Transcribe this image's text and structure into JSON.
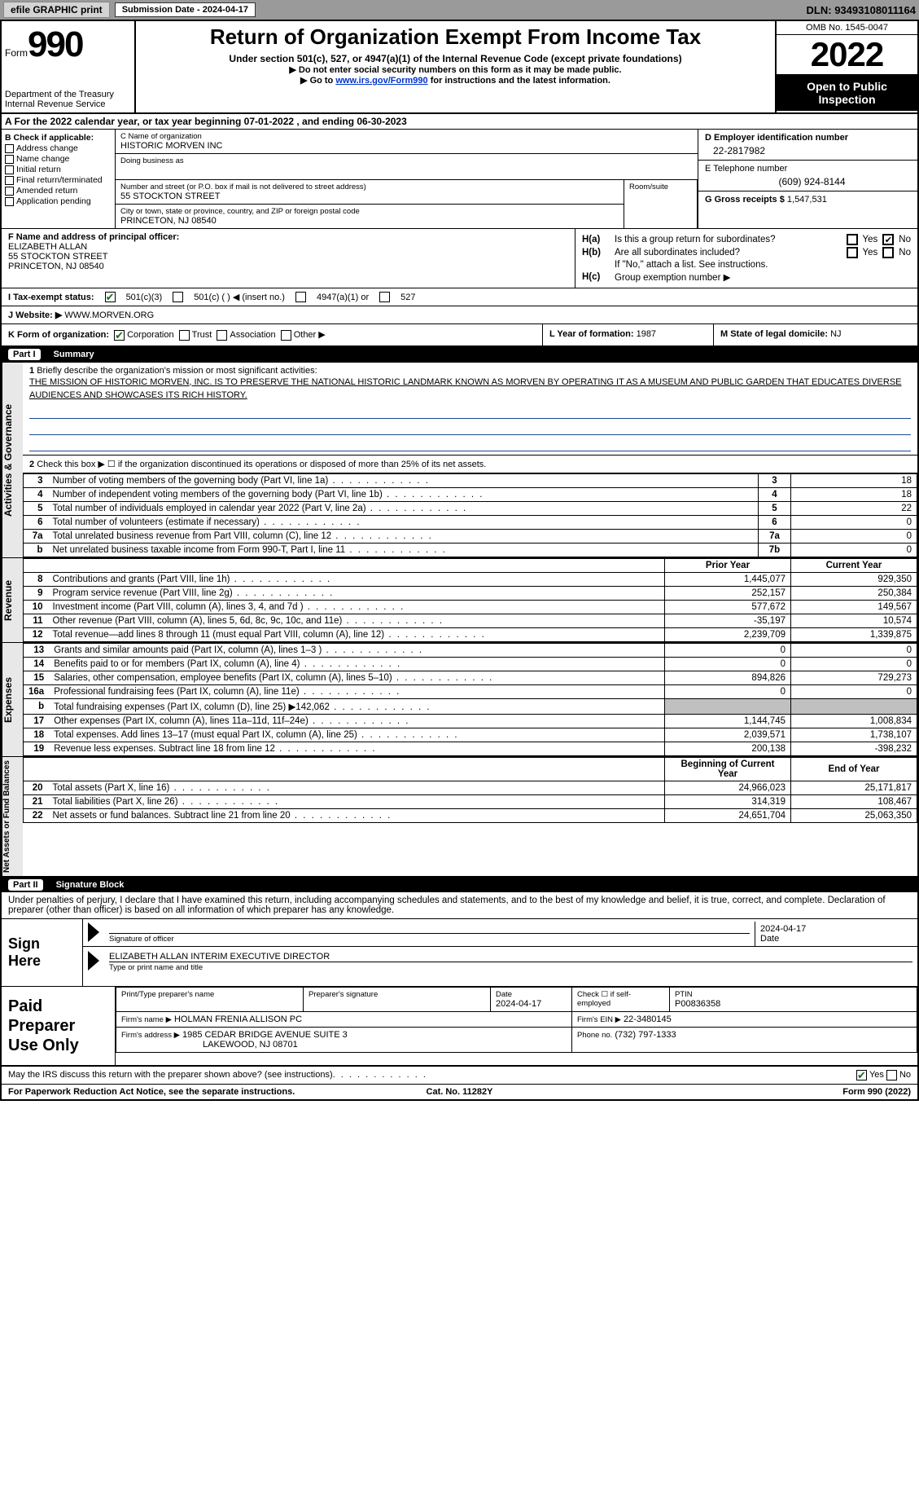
{
  "toolbar": {
    "efile_label": "efile GRAPHIC print",
    "submission_label": "Submission Date - 2024-04-17",
    "dln_label": "DLN: 93493108011164"
  },
  "header": {
    "form_label": "Form",
    "form_number": "990",
    "dept": "Department of the Treasury Internal Revenue Service",
    "title": "Return of Organization Exempt From Income Tax",
    "subtitle": "Under section 501(c), 527, or 4947(a)(1) of the Internal Revenue Code (except private foundations)",
    "note1": "▶ Do not enter social security numbers on this form as it may be made public.",
    "note2_pre": "▶ Go to ",
    "note2_link": "www.irs.gov/Form990",
    "note2_post": " for instructions and the latest information.",
    "omb": "OMB No. 1545-0047",
    "year": "2022",
    "open_public": "Open to Public Inspection"
  },
  "period": {
    "text": "A For the 2022 calendar year, or tax year beginning 07-01-2022   , and ending 06-30-2023"
  },
  "checkB": {
    "label": "B Check if applicable:",
    "items": [
      "Address change",
      "Name change",
      "Initial return",
      "Final return/terminated",
      "Amended return",
      "Application pending"
    ]
  },
  "orgC": {
    "name_label": "C Name of organization",
    "name": "HISTORIC MORVEN INC",
    "dba_label": "Doing business as",
    "addr_label": "Number and street (or P.O. box if mail is not delivered to street address)",
    "addr": "55 STOCKTON STREET",
    "room_label": "Room/suite",
    "city_label": "City or town, state or province, country, and ZIP or foreign postal code",
    "city": "PRINCETON, NJ  08540"
  },
  "ein": {
    "label": "D Employer identification number",
    "value": "22-2817982"
  },
  "tel": {
    "label": "E Telephone number",
    "value": "(609) 924-8144"
  },
  "gross": {
    "label": "G Gross receipts $",
    "value": "1,547,531"
  },
  "officerF": {
    "label": "F Name and address of principal officer:",
    "name": "ELIZABETH ALLAN",
    "addr1": "55 STOCKTON STREET",
    "addr2": "PRINCETON, NJ  08540"
  },
  "sectionH": {
    "ha_label": "H(a)",
    "ha_q": "Is this a group return for subordinates?",
    "hb_label": "H(b)",
    "hb_q": "Are all subordinates included?",
    "hb_note": "If \"No,\" attach a list. See instructions.",
    "hc_label": "H(c)",
    "hc_q": "Group exemption number ▶",
    "yes": "Yes",
    "no": "No"
  },
  "sectionI": {
    "label": "I  Tax-exempt status:",
    "opt1": "501(c)(3)",
    "opt2": "501(c) (  ) ◀ (insert no.)",
    "opt3": "4947(a)(1) or",
    "opt4": "527"
  },
  "sectionJ": {
    "label": "J  Website: ▶",
    "value": "WWW.MORVEN.ORG"
  },
  "sectionK": {
    "k1_label": "K Form of organization:",
    "opts": [
      "Corporation",
      "Trust",
      "Association",
      "Other ▶"
    ],
    "k2_label": "L Year of formation:",
    "k2_val": "1987",
    "k3_label": "M State of legal domicile:",
    "k3_val": "NJ"
  },
  "part1": {
    "header_pt": "Part I",
    "header_title": "Summary",
    "side_activities": "Activities & Governance",
    "side_revenue": "Revenue",
    "side_expenses": "Expenses",
    "side_netassets": "Net Assets or Fund Balances",
    "line1_label": "Briefly describe the organization's mission or most significant activities:",
    "mission": "THE MISSION OF HISTORIC MORVEN, INC. IS TO PRESERVE THE NATIONAL HISTORIC LANDMARK KNOWN AS MORVEN BY OPERATING IT AS A MUSEUM AND PUBLIC GARDEN THAT EDUCATES DIVERSE AUDIENCES AND SHOWCASES ITS RICH HISTORY.",
    "line2": "Check this box ▶ ☐ if the organization discontinued its operations or disposed of more than 25% of its net assets.",
    "rows_gov": [
      {
        "n": "3",
        "desc": "Number of voting members of the governing body (Part VI, line 1a)",
        "box": "3",
        "val": "18"
      },
      {
        "n": "4",
        "desc": "Number of independent voting members of the governing body (Part VI, line 1b)",
        "box": "4",
        "val": "18"
      },
      {
        "n": "5",
        "desc": "Total number of individuals employed in calendar year 2022 (Part V, line 2a)",
        "box": "5",
        "val": "22"
      },
      {
        "n": "6",
        "desc": "Total number of volunteers (estimate if necessary)",
        "box": "6",
        "val": "0"
      },
      {
        "n": "7a",
        "desc": "Total unrelated business revenue from Part VIII, column (C), line 12",
        "box": "7a",
        "val": "0"
      },
      {
        "n": "b",
        "desc": "Net unrelated business taxable income from Form 990-T, Part I, line 11",
        "box": "7b",
        "val": "0"
      }
    ],
    "col_prior": "Prior Year",
    "col_current": "Current Year",
    "rows_rev": [
      {
        "n": "8",
        "desc": "Contributions and grants (Part VIII, line 1h)",
        "py": "1,445,077",
        "cy": "929,350"
      },
      {
        "n": "9",
        "desc": "Program service revenue (Part VIII, line 2g)",
        "py": "252,157",
        "cy": "250,384"
      },
      {
        "n": "10",
        "desc": "Investment income (Part VIII, column (A), lines 3, 4, and 7d )",
        "py": "577,672",
        "cy": "149,567"
      },
      {
        "n": "11",
        "desc": "Other revenue (Part VIII, column (A), lines 5, 6d, 8c, 9c, 10c, and 11e)",
        "py": "-35,197",
        "cy": "10,574"
      },
      {
        "n": "12",
        "desc": "Total revenue—add lines 8 through 11 (must equal Part VIII, column (A), line 12)",
        "py": "2,239,709",
        "cy": "1,339,875"
      }
    ],
    "rows_exp": [
      {
        "n": "13",
        "desc": "Grants and similar amounts paid (Part IX, column (A), lines 1–3 )",
        "py": "0",
        "cy": "0"
      },
      {
        "n": "14",
        "desc": "Benefits paid to or for members (Part IX, column (A), line 4)",
        "py": "0",
        "cy": "0"
      },
      {
        "n": "15",
        "desc": "Salaries, other compensation, employee benefits (Part IX, column (A), lines 5–10)",
        "py": "894,826",
        "cy": "729,273"
      },
      {
        "n": "16a",
        "desc": "Professional fundraising fees (Part IX, column (A), line 11e)",
        "py": "0",
        "cy": "0"
      },
      {
        "n": "b",
        "desc": "Total fundraising expenses (Part IX, column (D), line 25) ▶142,062",
        "py": "",
        "cy": "",
        "gray": true
      },
      {
        "n": "17",
        "desc": "Other expenses (Part IX, column (A), lines 11a–11d, 11f–24e)",
        "py": "1,144,745",
        "cy": "1,008,834"
      },
      {
        "n": "18",
        "desc": "Total expenses. Add lines 13–17 (must equal Part IX, column (A), line 25)",
        "py": "2,039,571",
        "cy": "1,738,107"
      },
      {
        "n": "19",
        "desc": "Revenue less expenses. Subtract line 18 from line 12",
        "py": "200,138",
        "cy": "-398,232"
      }
    ],
    "col_begin": "Beginning of Current Year",
    "col_end": "End of Year",
    "rows_net": [
      {
        "n": "20",
        "desc": "Total assets (Part X, line 16)",
        "py": "24,966,023",
        "cy": "25,171,817"
      },
      {
        "n": "21",
        "desc": "Total liabilities (Part X, line 26)",
        "py": "314,319",
        "cy": "108,467"
      },
      {
        "n": "22",
        "desc": "Net assets or fund balances. Subtract line 21 from line 20",
        "py": "24,651,704",
        "cy": "25,063,350"
      }
    ]
  },
  "part2": {
    "header_pt": "Part II",
    "header_title": "Signature Block",
    "declaration": "Under penalties of perjury, I declare that I have examined this return, including accompanying schedules and statements, and to the best of my knowledge and belief, it is true, correct, and complete. Declaration of preparer (other than officer) is based on all information of which preparer has any knowledge.",
    "sign_here": "Sign Here",
    "sig_officer_label": "Signature of officer",
    "sig_date": "2024-04-17",
    "sig_date_label": "Date",
    "sig_name": "ELIZABETH ALLAN INTERIM EXECUTIVE DIRECTOR",
    "sig_name_label": "Type or print name and title",
    "paid_prep": "Paid Preparer Use Only",
    "prep_name_label": "Print/Type preparer's name",
    "prep_sig_label": "Preparer's signature",
    "prep_date_label": "Date",
    "prep_date": "2024-04-17",
    "prep_check_label": "Check ☐ if self-employed",
    "ptin_label": "PTIN",
    "ptin": "P00836358",
    "firm_name_label": "Firm's name    ▶",
    "firm_name": "HOLMAN FRENIA ALLISON PC",
    "firm_ein_label": "Firm's EIN ▶",
    "firm_ein": "22-3480145",
    "firm_addr_label": "Firm's address ▶",
    "firm_addr1": "1985 CEDAR BRIDGE AVENUE SUITE 3",
    "firm_addr2": "LAKEWOOD, NJ  08701",
    "phone_label": "Phone no.",
    "phone": "(732) 797-1333",
    "discuss": "May the IRS discuss this return with the preparer shown above? (see instructions)",
    "yes": "Yes",
    "no": "No"
  },
  "footer": {
    "left": "For Paperwork Reduction Act Notice, see the separate instructions.",
    "mid": "Cat. No. 11282Y",
    "right": "Form 990 (2022)"
  }
}
